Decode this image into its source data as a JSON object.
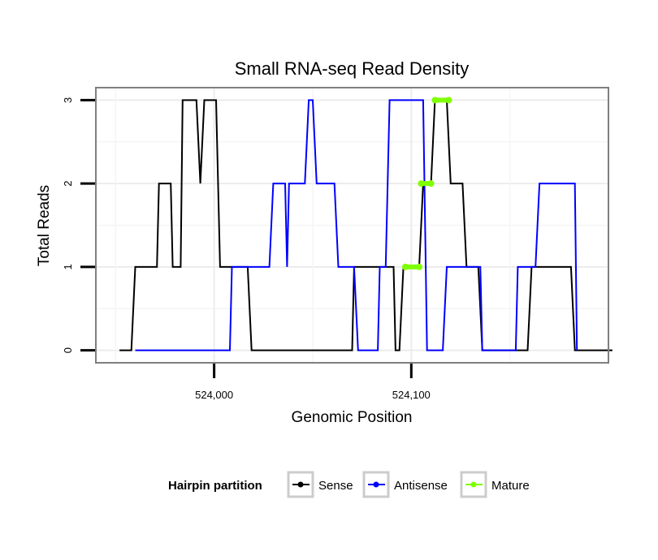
{
  "chart_data": {
    "type": "line",
    "title": "Small RNA-seq Read Density",
    "xlabel": "Genomic Position",
    "ylabel": "Total Reads",
    "xlim": [
      523940,
      524200
    ],
    "ylim": [
      -0.15,
      3.15
    ],
    "x_ticks": [
      {
        "value": 524000,
        "label": "524,000"
      },
      {
        "value": 524100,
        "label": "524,100"
      }
    ],
    "y_ticks": [
      {
        "value": 0,
        "label": "0"
      },
      {
        "value": 1,
        "label": "1"
      },
      {
        "value": 2,
        "label": "2"
      },
      {
        "value": 3,
        "label": "3"
      }
    ],
    "grid": true,
    "legend": {
      "title": "Hairpin partition",
      "position": "bottom",
      "entries": [
        {
          "name": "Sense",
          "color": "#000000"
        },
        {
          "name": "Antisense",
          "color": "#0000ff"
        },
        {
          "name": "Mature",
          "color": "#7fff00"
        }
      ]
    },
    "series": [
      {
        "name": "Sense",
        "color": "#000000",
        "points": [
          [
            523952,
            0
          ],
          [
            523958,
            0
          ],
          [
            523960,
            1
          ],
          [
            523971,
            1
          ],
          [
            523972,
            2
          ],
          [
            523978,
            2
          ],
          [
            523979,
            1
          ],
          [
            523983,
            1
          ],
          [
            523984,
            3
          ],
          [
            523991,
            3
          ],
          [
            523993,
            2
          ],
          [
            523995,
            3
          ],
          [
            524001,
            3
          ],
          [
            524003,
            1
          ],
          [
            524017,
            1
          ],
          [
            524019,
            0
          ],
          [
            524070,
            0
          ],
          [
            524071,
            1
          ],
          [
            524091,
            1
          ],
          [
            524092,
            0
          ],
          [
            524094,
            0
          ],
          [
            524096,
            1
          ],
          [
            524104,
            1
          ],
          [
            524106,
            2
          ],
          [
            524110,
            2
          ],
          [
            524112,
            3
          ],
          [
            524118,
            3
          ],
          [
            524120,
            2
          ],
          [
            524126,
            2
          ],
          [
            524128,
            1
          ],
          [
            524134,
            1
          ],
          [
            524136,
            0
          ],
          [
            524159,
            0
          ],
          [
            524161,
            1
          ],
          [
            524181,
            1
          ],
          [
            524183,
            0
          ],
          [
            524202,
            0
          ]
        ]
      },
      {
        "name": "Antisense",
        "color": "#0000ff",
        "points": [
          [
            523960,
            0
          ],
          [
            524008,
            0
          ],
          [
            524009,
            1
          ],
          [
            524028,
            1
          ],
          [
            524030,
            2
          ],
          [
            524036,
            2
          ],
          [
            524037,
            1
          ],
          [
            524038,
            2
          ],
          [
            524046,
            2
          ],
          [
            524048,
            3
          ],
          [
            524050,
            3
          ],
          [
            524052,
            2
          ],
          [
            524061,
            2
          ],
          [
            524063,
            1
          ],
          [
            524071,
            1
          ],
          [
            524073,
            0
          ],
          [
            524083,
            0
          ],
          [
            524084,
            1
          ],
          [
            524087,
            1
          ],
          [
            524088,
            2
          ],
          [
            524089,
            3
          ],
          [
            524106,
            3
          ],
          [
            524108,
            0
          ],
          [
            524116,
            0
          ],
          [
            524118,
            1
          ],
          [
            524135,
            1
          ],
          [
            524136,
            0
          ],
          [
            524153,
            0
          ],
          [
            524154,
            1
          ],
          [
            524163,
            1
          ],
          [
            524165,
            2
          ],
          [
            524183,
            2
          ],
          [
            524184,
            0
          ]
        ]
      },
      {
        "name": "Mature",
        "color": "#7fff00",
        "segments": [
          {
            "x_start": 524097,
            "x_end": 524104,
            "y": 1
          },
          {
            "x_start": 524105,
            "x_end": 524110,
            "y": 2
          },
          {
            "x_start": 524112,
            "x_end": 524119,
            "y": 3
          }
        ]
      }
    ]
  }
}
